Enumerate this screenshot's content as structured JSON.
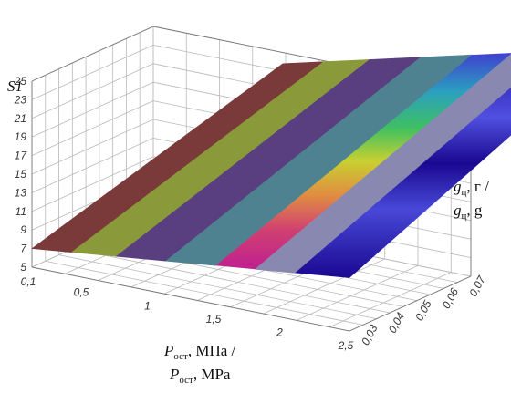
{
  "chart_data": {
    "type": "surface3d",
    "z_label": "S1",
    "x_label": {
      "line1_main": "P",
      "line1_sub": "ост",
      "line1_rest": ", МПа /",
      "line2_main": "P",
      "line2_sub": "ост",
      "line2_rest": ", MPa"
    },
    "y_label": {
      "line1_main": "g",
      "line1_sub": "ц",
      "line1_rest": ", г /",
      "line2_main": "g",
      "line2_sub": "ц",
      "line2_rest": ", g"
    },
    "x_ticks": [
      "0,1",
      "0,5",
      "1",
      "1,5",
      "2",
      "2,5"
    ],
    "x_tick_values": [
      0.1,
      0.5,
      1.0,
      1.5,
      2.0,
      2.5
    ],
    "y_ticks": [
      "0,03",
      "0,04",
      "0,05",
      "0,06",
      "0,07"
    ],
    "y_tick_values": [
      0.03,
      0.04,
      0.05,
      0.06,
      0.07
    ],
    "z_ticks": [
      "5",
      "7",
      "9",
      "11",
      "13",
      "15",
      "17",
      "19",
      "21",
      "23",
      "25"
    ],
    "z_tick_values": [
      5,
      7,
      9,
      11,
      13,
      15,
      17,
      19,
      21,
      23,
      25
    ],
    "xlim": [
      0.1,
      2.5
    ],
    "ylim": [
      0.03,
      0.075
    ],
    "zlim": [
      5,
      25
    ],
    "surface": {
      "x": [
        0.1,
        2.5
      ],
      "y": [
        0.03,
        0.075
      ],
      "z": [
        [
          7.0,
          9.5
        ],
        [
          21.0,
          25.5
        ]
      ]
    },
    "color_bands": [
      {
        "x_from": 0.1,
        "x_to": 0.5,
        "color": "#7a3a3a"
      },
      {
        "x_from": 0.5,
        "x_to": 0.95,
        "color": "#8a9a3a"
      },
      {
        "x_from": 0.95,
        "x_to": 1.45,
        "color": "#5a3f80"
      },
      {
        "x_from": 1.45,
        "x_to": 1.95,
        "color": "#4f8290"
      },
      {
        "x_from": 1.95,
        "x_to": 2.35,
        "color": "gradient-band"
      },
      {
        "x_from": 2.35,
        "x_to": 2.75,
        "color": "#8888b0"
      },
      {
        "x_from": 2.75,
        "x_to": 3.3,
        "color": "#2a1aa8"
      }
    ],
    "grid": true
  }
}
